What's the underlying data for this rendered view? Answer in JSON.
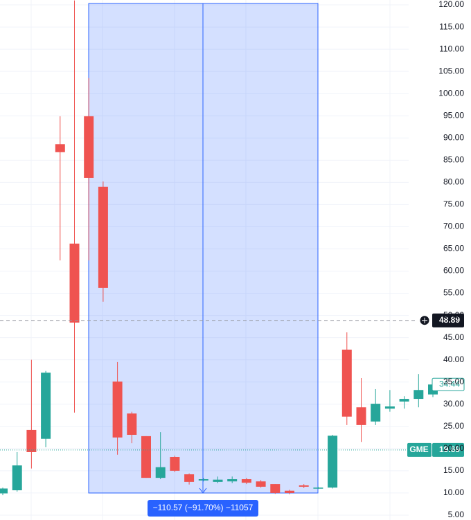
{
  "chart_data": {
    "type": "candlestick",
    "symbol": "GME",
    "last_price": 19.69,
    "crosshair_price": 48.89,
    "close_price": 34.44,
    "measure_label": "−110.57 (−91.70%) −11057",
    "up_color": "#26a69a",
    "down_color": "#ef5350",
    "ylim": [
      3.9,
      121.1
    ],
    "yticks": [
      {
        "value": 5,
        "label": "5.00"
      },
      {
        "value": 10,
        "label": "10.00"
      },
      {
        "value": 15,
        "label": "15.00"
      },
      {
        "value": 20,
        "label": "20.00"
      },
      {
        "value": 25,
        "label": "25.00"
      },
      {
        "value": 30,
        "label": "30.00"
      },
      {
        "value": 35,
        "label": "35.00"
      },
      {
        "value": 40,
        "label": "40.00"
      },
      {
        "value": 45,
        "label": "45.00"
      },
      {
        "value": 50,
        "label": "50.00"
      },
      {
        "value": 55,
        "label": "55.00"
      },
      {
        "value": 60,
        "label": "60.00"
      },
      {
        "value": 65,
        "label": "65.00"
      },
      {
        "value": 70,
        "label": "70.00"
      },
      {
        "value": 75,
        "label": "75.00"
      },
      {
        "value": 80,
        "label": "80.00"
      },
      {
        "value": 85,
        "label": "85.00"
      },
      {
        "value": 90,
        "label": "90.00"
      },
      {
        "value": 95,
        "label": "95.00"
      },
      {
        "value": 100,
        "label": "100.00"
      },
      {
        "value": 105,
        "label": "105.00"
      },
      {
        "value": 110,
        "label": "110.00"
      },
      {
        "value": 115,
        "label": "115.00"
      },
      {
        "value": 120,
        "label": "120.00"
      }
    ],
    "grid": true,
    "open": [
      9.9,
      10.6,
      24.2,
      22.2,
      88.6,
      66.2,
      94.9,
      79.0,
      35.1,
      27.9,
      22.8,
      13.4,
      18.1,
      14.2,
      12.8,
      12.5,
      12.6,
      13.1,
      12.6,
      12.0,
      10.5,
      11.7,
      11.0,
      11.2,
      42.3,
      29.3,
      26.1,
      29.0,
      30.6,
      31.2,
      32.2
    ],
    "high": [
      11.2,
      19.2,
      40.0,
      37.5,
      94.9,
      121.0,
      103.5,
      80.2,
      39.5,
      28.3,
      22.8,
      23.7,
      18.4,
      14.4,
      13.4,
      13.7,
      13.7,
      13.4,
      12.9,
      12.0,
      10.7,
      12.0,
      11.4,
      23.1,
      46.2,
      35.9,
      33.4,
      33.2,
      31.8,
      36.8,
      35.0
    ],
    "low": [
      9.5,
      10.3,
      15.5,
      20.3,
      62.4,
      28.1,
      62.4,
      53.1,
      18.6,
      21.2,
      13.4,
      13.1,
      14.7,
      11.9,
      12.6,
      12.2,
      12.2,
      12.0,
      11.2,
      9.8,
      9.7,
      11.1,
      10.9,
      11.0,
      25.3,
      21.5,
      25.3,
      28.3,
      29.0,
      29.3,
      31.6
    ],
    "close": [
      11.0,
      16.2,
      19.2,
      37.1,
      86.8,
      48.4,
      81.0,
      56.2,
      22.5,
      23.1,
      13.4,
      15.8,
      15.0,
      12.5,
      13.1,
      13.0,
      13.1,
      12.3,
      11.4,
      10.0,
      10.0,
      11.4,
      11.2,
      22.9,
      27.2,
      25.3,
      30.1,
      29.5,
      31.2,
      33.2,
      34.44
    ]
  }
}
